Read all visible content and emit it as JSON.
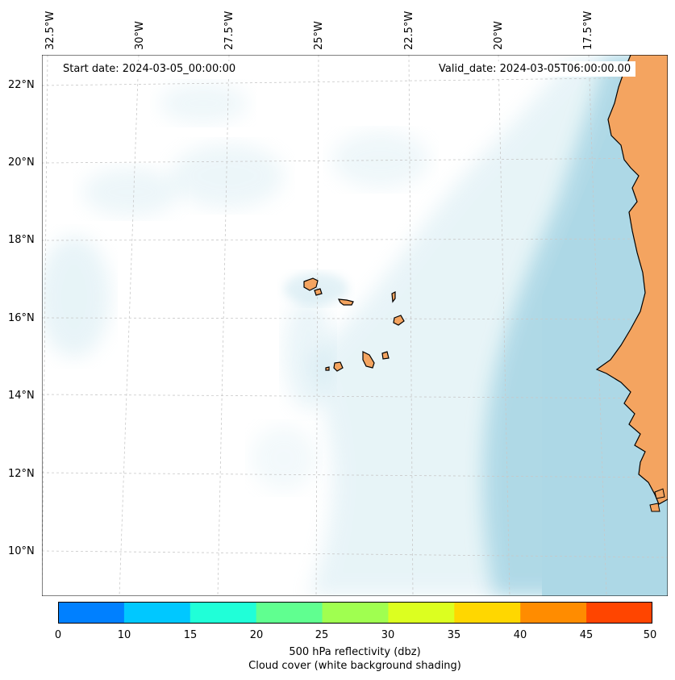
{
  "map": {
    "start_date": "Start date: 2024-03-05_00:00:00",
    "valid_date": "Valid_date: 2024-03-05T06:00:00.00",
    "lon_labels": [
      "32.5°W",
      "30°W",
      "27.5°W",
      "25°W",
      "22.5°W",
      "20°W",
      "17.5°W"
    ],
    "lat_labels": [
      "22°N",
      "20°N",
      "18°N",
      "16°N",
      "14°N",
      "12°N",
      "10°N"
    ],
    "region": "Cabo Verde and West African coast",
    "colors": {
      "land": "#f4a460",
      "cloud": "#add8e6",
      "coastline": "#000000",
      "grid": "#cccccc"
    }
  },
  "colorbar": {
    "ticks": [
      "0",
      "10",
      "15",
      "20",
      "25",
      "30",
      "35",
      "40",
      "45",
      "50"
    ],
    "colors": [
      "#0080ff",
      "#00c8ff",
      "#20ffd8",
      "#60ff90",
      "#a0ff50",
      "#dcff20",
      "#ffd700",
      "#ff8c00",
      "#ff4500"
    ],
    "label_line1": "500 hPa reflectivity (dbz)",
    "label_line2": "Cloud cover (white background shading)"
  }
}
